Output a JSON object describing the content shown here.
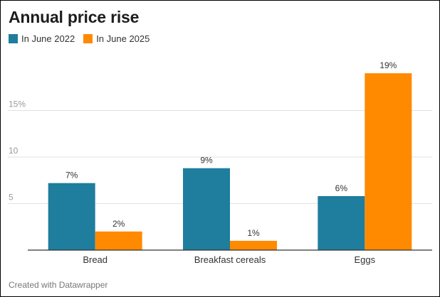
{
  "chart_data": {
    "type": "bar",
    "title": "Annual price rise",
    "categories": [
      "Bread",
      "Breakfast cereals",
      "Eggs"
    ],
    "series": [
      {
        "name": "In June 2022",
        "color": "#1f7d9e",
        "values": [
          7.2,
          8.8,
          5.8
        ],
        "labels": [
          "7%",
          "9%",
          "6%"
        ]
      },
      {
        "name": "In June 2025",
        "color": "#ff8a00",
        "values": [
          2.0,
          1.0,
          19.0
        ],
        "labels": [
          "2%",
          "1%",
          "19%"
        ]
      }
    ],
    "y_ticks": [
      {
        "value": 5,
        "label": "5"
      },
      {
        "value": 10,
        "label": "10"
      },
      {
        "value": 15,
        "label": "15%"
      }
    ],
    "ylim": [
      0,
      20
    ],
    "grid": true,
    "legend": "top-left"
  },
  "footer": "Created with Datawrapper"
}
